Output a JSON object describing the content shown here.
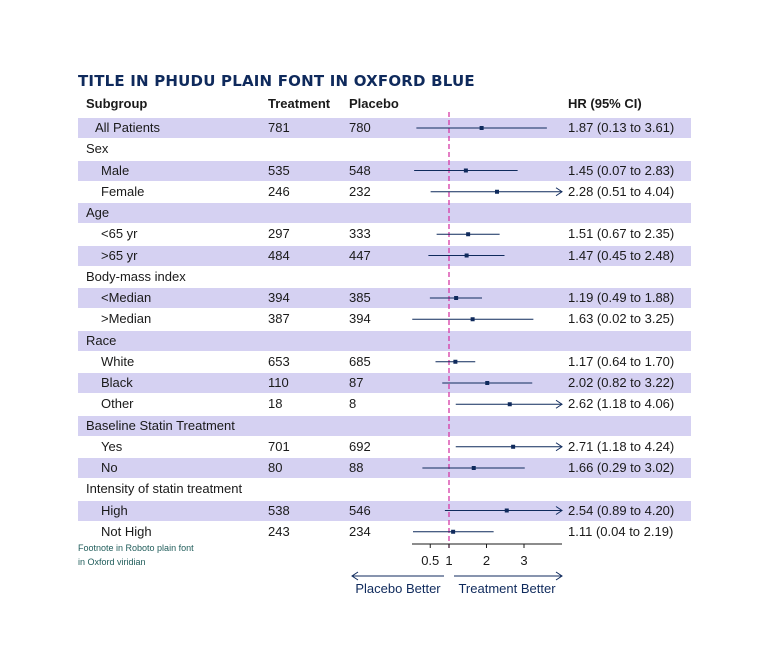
{
  "title": "TITLE IN PHUDU PLAIN FONT IN OXFORD BLUE",
  "headers": {
    "subgroup": "Subgroup",
    "treatment": "Treatment",
    "placebo": "Placebo",
    "hr": "HR (95% CI)"
  },
  "footnote": [
    "Footnote in Roboto plain font",
    "in Oxford viridian"
  ],
  "colors": {
    "title": "#0f2a5c",
    "band": "#d5d1f2",
    "marker": "#0f2a5c",
    "reference_line": "#d63aa6",
    "footnote": "#1f5c5a"
  },
  "chart_data": {
    "type": "forest",
    "xlabel_left": "Placebo Better",
    "xlabel_right": "Treatment Better",
    "x_ticks": [
      "0.5",
      "1",
      "2",
      "3"
    ],
    "x_tick_values": [
      0.5,
      1,
      2,
      3
    ],
    "reference_value": 1,
    "xlim": [
      -0.5,
      4.1
    ],
    "rows": [
      {
        "label": "All Patients",
        "level": 0,
        "band": true,
        "treatment": "781",
        "placebo": "780",
        "hr": 1.87,
        "lo": 0.13,
        "hi": 3.61,
        "hr_text": "1.87 (0.13 to 3.61)"
      },
      {
        "label": "Sex",
        "level": 0,
        "band": false,
        "header": true
      },
      {
        "label": "Male",
        "level": 1,
        "band": true,
        "treatment": "535",
        "placebo": "548",
        "hr": 1.45,
        "lo": 0.07,
        "hi": 2.83,
        "hr_text": "1.45 (0.07 to 2.83)"
      },
      {
        "label": "Female",
        "level": 1,
        "band": false,
        "treatment": "246",
        "placebo": "232",
        "hr": 2.28,
        "lo": 0.51,
        "hi": 4.04,
        "arrow": true,
        "hr_text": "2.28 (0.51 to 4.04)"
      },
      {
        "label": "Age",
        "level": 0,
        "band": true,
        "header": true
      },
      {
        "label": "<65 yr",
        "level": 1,
        "band": false,
        "treatment": "297",
        "placebo": "333",
        "hr": 1.51,
        "lo": 0.67,
        "hi": 2.35,
        "hr_text": "1.51 (0.67 to 2.35)"
      },
      {
        "label": ">65 yr",
        "level": 1,
        "band": true,
        "treatment": "484",
        "placebo": "447",
        "hr": 1.47,
        "lo": 0.45,
        "hi": 2.48,
        "hr_text": "1.47 (0.45 to 2.48)"
      },
      {
        "label": "Body-mass index",
        "level": 0,
        "band": false,
        "header": true
      },
      {
        "label": "<Median",
        "level": 1,
        "band": true,
        "treatment": "394",
        "placebo": "385",
        "hr": 1.19,
        "lo": 0.49,
        "hi": 1.88,
        "hr_text": "1.19 (0.49 to 1.88)"
      },
      {
        "label": ">Median",
        "level": 1,
        "band": false,
        "treatment": "387",
        "placebo": "394",
        "hr": 1.63,
        "lo": 0.02,
        "hi": 3.25,
        "hr_text": "1.63 (0.02 to 3.25)"
      },
      {
        "label": "Race",
        "level": 0,
        "band": true,
        "header": true
      },
      {
        "label": "White",
        "level": 1,
        "band": false,
        "treatment": "653",
        "placebo": "685",
        "hr": 1.17,
        "lo": 0.64,
        "hi": 1.7,
        "hr_text": "1.17 (0.64 to 1.70)"
      },
      {
        "label": "Black",
        "level": 1,
        "band": true,
        "treatment": "110",
        "placebo": "87",
        "hr": 2.02,
        "lo": 0.82,
        "hi": 3.22,
        "hr_text": "2.02 (0.82 to 3.22)"
      },
      {
        "label": "Other",
        "level": 1,
        "band": false,
        "treatment": "18",
        "placebo": "8",
        "hr": 2.62,
        "lo": 1.18,
        "hi": 4.06,
        "arrow": true,
        "hr_text": "2.62 (1.18 to 4.06)"
      },
      {
        "label": "Baseline Statin Treatment",
        "level": 0,
        "band": true,
        "header": true
      },
      {
        "label": "Yes",
        "level": 1,
        "band": false,
        "treatment": "701",
        "placebo": "692",
        "hr": 2.71,
        "lo": 1.18,
        "hi": 4.24,
        "arrow": true,
        "hr_text": "2.71 (1.18 to 4.24)"
      },
      {
        "label": "No",
        "level": 1,
        "band": true,
        "treatment": "80",
        "placebo": "88",
        "hr": 1.66,
        "lo": 0.29,
        "hi": 3.02,
        "hr_text": "1.66 (0.29 to 3.02)"
      },
      {
        "label": "Intensity of statin treatment",
        "level": 0,
        "band": false,
        "header": true
      },
      {
        "label": "High",
        "level": 1,
        "band": true,
        "treatment": "538",
        "placebo": "546",
        "hr": 2.54,
        "lo": 0.89,
        "hi": 4.2,
        "arrow": true,
        "hr_text": "2.54 (0.89 to 4.20)"
      },
      {
        "label": "Not High",
        "level": 1,
        "band": false,
        "treatment": "243",
        "placebo": "234",
        "hr": 1.11,
        "lo": 0.04,
        "hi": 2.19,
        "hr_text": "1.11 (0.04 to 2.19)"
      }
    ]
  }
}
